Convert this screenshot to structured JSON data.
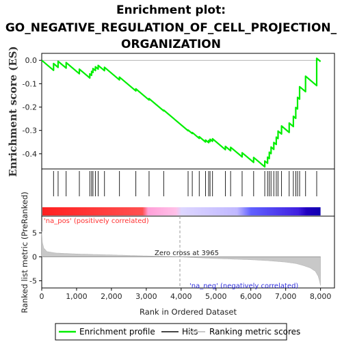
{
  "chart_data": {
    "type": "line",
    "title_lines": [
      "Enrichment plot:",
      "GO_NEGATIVE_REGULATION_OF_CELL_PROJECTION_",
      "ORGANIZATION"
    ],
    "xlabel": "Rank in Ordered Dataset",
    "xlim": [
      0,
      8400
    ],
    "xticks": [
      0,
      1000,
      2000,
      3000,
      4000,
      5000,
      6000,
      7000,
      8000
    ],
    "xtick_labels": [
      "0",
      "1,000",
      "2,000",
      "3,000",
      "4,000",
      "5,000",
      "6,000",
      "7,000",
      "8,000"
    ],
    "top_panel": {
      "ylabel": "Enrichment score (ES)",
      "ylim": [
        -0.465,
        0.03
      ],
      "yticks": [
        0.0,
        -0.1,
        -0.2,
        -0.3,
        -0.4
      ],
      "ytick_labels": [
        "0.0",
        "-0.1",
        "-0.2",
        "-0.3",
        "-0.4"
      ],
      "color": "#00ee00"
    },
    "bottom_panel": {
      "ylabel": "Ranked list metric (PreRanked)",
      "ylim": [
        -6.5,
        8.5
      ],
      "yticks": [
        5,
        0,
        -5
      ],
      "ytick_labels": [
        "5",
        "0",
        "-5"
      ]
    },
    "hits": [
      340,
      470,
      700,
      1080,
      1380,
      1430,
      1470,
      1540,
      1620,
      1800,
      2230,
      2700,
      3080,
      3500,
      4200,
      4320,
      4520,
      4700,
      4790,
      4830,
      4900,
      5270,
      5420,
      5750,
      6080,
      6400,
      6480,
      6530,
      6580,
      6660,
      6730,
      6780,
      6880,
      7100,
      7220,
      7290,
      7340,
      7400,
      7570,
      7890
    ],
    "n_total": 8000,
    "metric_profile": {
      "rank": [
        0,
        20,
        60,
        150,
        400,
        1000,
        2000,
        3000,
        3965,
        4500,
        5000,
        6000,
        6500,
        7000,
        7300,
        7500,
        7700,
        7850,
        7930,
        7970,
        8000
      ],
      "score": [
        5.3,
        3.0,
        1.8,
        1.1,
        0.8,
        0.6,
        0.4,
        0.2,
        0.0,
        -0.2,
        -0.35,
        -0.6,
        -0.8,
        -1.1,
        -1.4,
        -1.8,
        -2.3,
        -3.0,
        -4.0,
        -5.0,
        -6.0
      ]
    },
    "annotations": {
      "pos_label": "'na_pos' (positively correlated)",
      "neg_label": "'na_neg' (negatively correlated)",
      "zero_cross": "Zero cross at 3965",
      "zero_cross_rank": 3965
    },
    "legend": {
      "items": [
        "Enrichment profile",
        "Hits",
        "Ranking metric scores"
      ],
      "colors": [
        "#00ee00",
        "#444444",
        "#c8c8c8"
      ]
    },
    "colorbar": {
      "stops": [
        "#ff2020",
        "#ff9090",
        "#ffb0e0",
        "#e0d0ff",
        "#9090ff",
        "#3030e0",
        "#1000c0"
      ]
    }
  }
}
